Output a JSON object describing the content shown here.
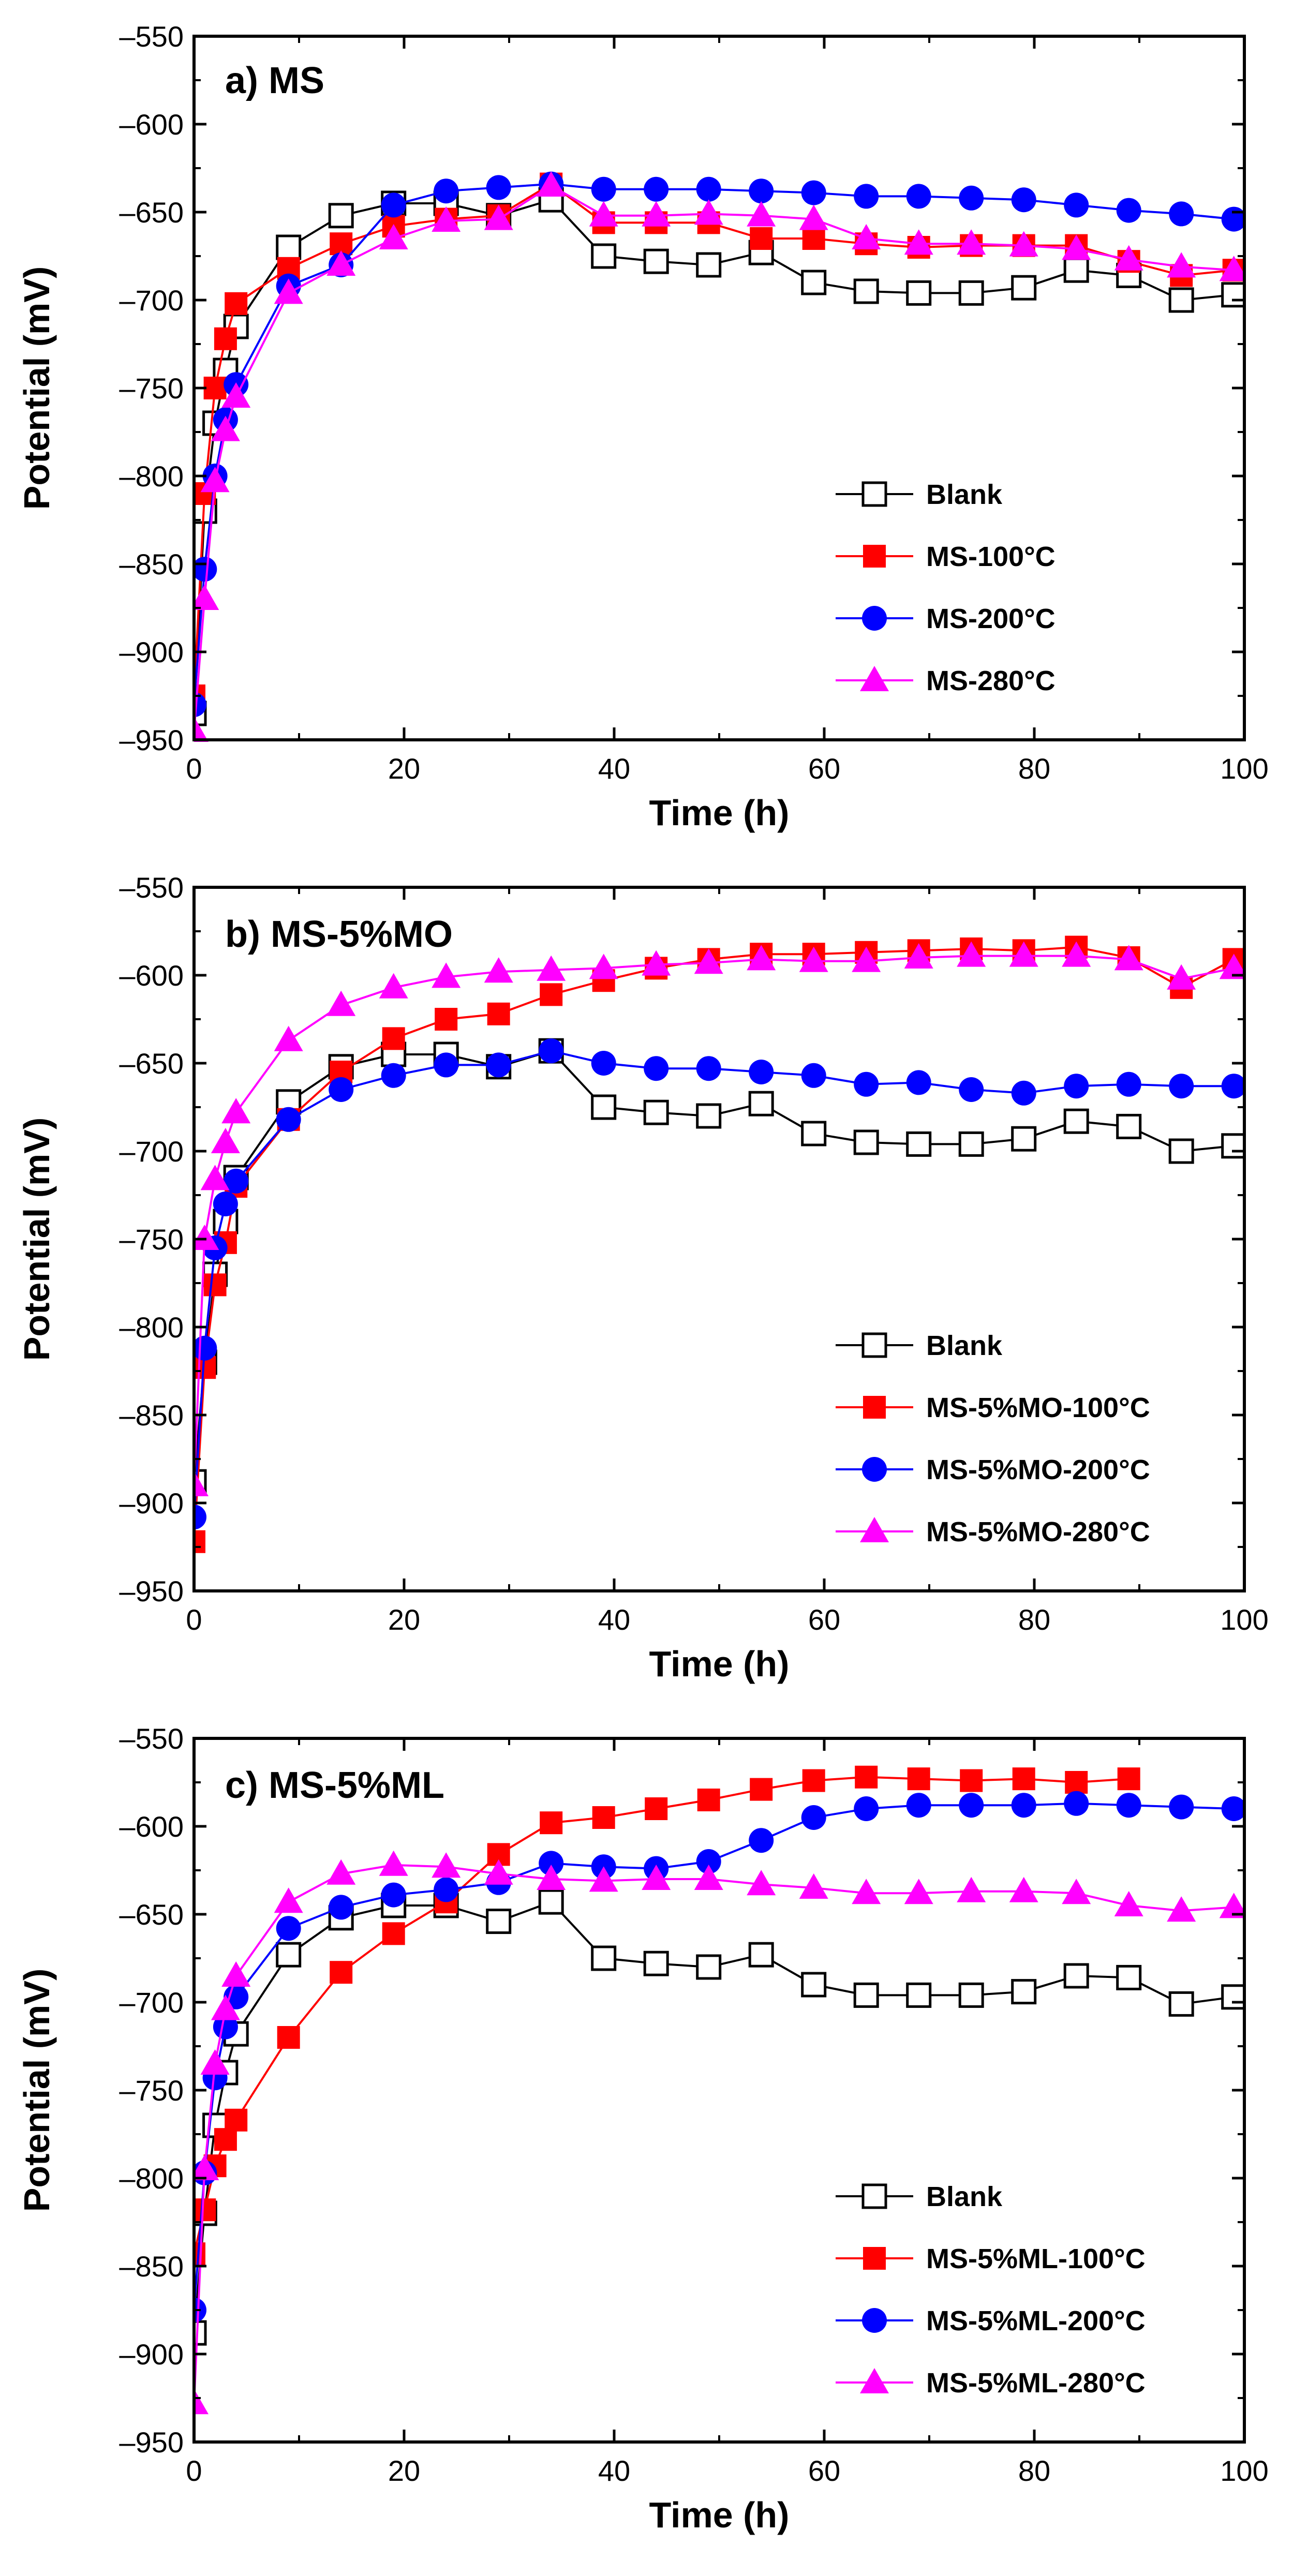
{
  "figure": {
    "colors": {
      "blank": "#000000",
      "c100": "#ff0000",
      "c200": "#0000ff",
      "c280": "#ff00ff"
    }
  },
  "chart_data": [
    {
      "type": "line",
      "title": "a) MS",
      "xlabel": "Time (h)",
      "ylabel": "Potential (mV)",
      "xlim": [
        0,
        100
      ],
      "ylim": [
        -950,
        -550
      ],
      "xticks": [
        0,
        20,
        40,
        60,
        80,
        100
      ],
      "yticks": [
        -550,
        -600,
        -650,
        -700,
        -750,
        -800,
        -850,
        -900,
        -950
      ],
      "legend_position": "bottom-right",
      "series": [
        {
          "name": "Blank",
          "marker": "square-open",
          "color": "#000000",
          "x": [
            0,
            1,
            2,
            3,
            4,
            9,
            14,
            19,
            24,
            29,
            34,
            39,
            44,
            49,
            54,
            59,
            64,
            69,
            74,
            79,
            84,
            89,
            94,
            99
          ],
          "y": [
            -935,
            -820,
            -770,
            -740,
            -715,
            -670,
            -652,
            -645,
            -645,
            -652,
            -643,
            -675,
            -678,
            -680,
            -673,
            -690,
            -695,
            -696,
            -696,
            -693,
            -683,
            -686,
            -700,
            -697
          ]
        },
        {
          "name": "MS-100°C",
          "marker": "square",
          "color": "#ff0000",
          "x": [
            0,
            1,
            2,
            3,
            4,
            9,
            14,
            19,
            24,
            29,
            34,
            39,
            44,
            49,
            54,
            59,
            64,
            69,
            74,
            79,
            84,
            89,
            94,
            99
          ],
          "y": [
            -925,
            -810,
            -750,
            -722,
            -702,
            -682,
            -668,
            -658,
            -654,
            -652,
            -634,
            -656,
            -656,
            -656,
            -665,
            -665,
            -668,
            -670,
            -669,
            -669,
            -669,
            -678,
            -686,
            -683
          ]
        },
        {
          "name": "MS-200°C",
          "marker": "circle",
          "color": "#0000ff",
          "x": [
            0,
            1,
            2,
            3,
            4,
            9,
            14,
            19,
            24,
            29,
            34,
            39,
            44,
            49,
            54,
            59,
            64,
            69,
            74,
            79,
            84,
            89,
            94,
            99
          ],
          "y": [
            -930,
            -853,
            -800,
            -768,
            -748,
            -692,
            -680,
            -646,
            -638,
            -636,
            -634,
            -637,
            -637,
            -637,
            -638,
            -639,
            -641,
            -641,
            -642,
            -643,
            -646,
            -649,
            -651,
            -654
          ]
        },
        {
          "name": "MS-280°C",
          "marker": "triangle",
          "color": "#ff00ff",
          "x": [
            0,
            1,
            2,
            3,
            4,
            9,
            14,
            19,
            24,
            29,
            34,
            39,
            44,
            49,
            54,
            59,
            64,
            69,
            74,
            79,
            84,
            89,
            94,
            99
          ],
          "y": [
            -945,
            -870,
            -803,
            -774,
            -755,
            -696,
            -680,
            -665,
            -655,
            -654,
            -635,
            -652,
            -652,
            -651,
            -652,
            -654,
            -665,
            -668,
            -668,
            -669,
            -671,
            -677,
            -681,
            -683
          ]
        }
      ]
    },
    {
      "type": "line",
      "title": "b) MS-5%MO",
      "xlabel": "Time (h)",
      "ylabel": "Potential (mV)",
      "xlim": [
        0,
        100
      ],
      "ylim": [
        -950,
        -550
      ],
      "xticks": [
        0,
        20,
        40,
        60,
        80,
        100
      ],
      "yticks": [
        -550,
        -600,
        -650,
        -700,
        -750,
        -800,
        -850,
        -900,
        -950
      ],
      "legend_position": "bottom-right",
      "series": [
        {
          "name": "Blank",
          "marker": "square-open",
          "color": "#000000",
          "x": [
            0,
            1,
            2,
            3,
            4,
            9,
            14,
            19,
            24,
            29,
            34,
            39,
            44,
            49,
            54,
            59,
            64,
            69,
            74,
            79,
            84,
            89,
            94,
            99
          ],
          "y": [
            -888,
            -820,
            -770,
            -740,
            -715,
            -672,
            -652,
            -645,
            -645,
            -652,
            -643,
            -675,
            -678,
            -680,
            -673,
            -690,
            -695,
            -696,
            -696,
            -693,
            -683,
            -686,
            -700,
            -697
          ]
        },
        {
          "name": "MS-5%MO-100°C",
          "marker": "square",
          "color": "#ff0000",
          "x": [
            0,
            1,
            2,
            3,
            4,
            9,
            14,
            19,
            24,
            29,
            34,
            39,
            44,
            49,
            54,
            59,
            64,
            69,
            74,
            79,
            84,
            89,
            94,
            99
          ],
          "y": [
            -922,
            -823,
            -776,
            -752,
            -720,
            -682,
            -655,
            -636,
            -625,
            -622,
            -611,
            -603,
            -596,
            -591,
            -588,
            -588,
            -587,
            -586,
            -585,
            -586,
            -584,
            -590,
            -607,
            -591
          ]
        },
        {
          "name": "MS-5%MO-200°C",
          "marker": "circle",
          "color": "#0000ff",
          "x": [
            0,
            1,
            2,
            3,
            4,
            9,
            14,
            19,
            24,
            29,
            34,
            39,
            44,
            49,
            54,
            59,
            64,
            69,
            74,
            79,
            84,
            89,
            94,
            99
          ],
          "y": [
            -908,
            -812,
            -755,
            -730,
            -717,
            -682,
            -665,
            -657,
            -651,
            -651,
            -643,
            -650,
            -653,
            -653,
            -655,
            -657,
            -662,
            -661,
            -665,
            -667,
            -663,
            -662,
            -663,
            -663
          ]
        },
        {
          "name": "MS-5%MO-280°C",
          "marker": "triangle",
          "color": "#ff00ff",
          "x": [
            0,
            1,
            2,
            3,
            4,
            9,
            14,
            19,
            24,
            29,
            34,
            39,
            44,
            49,
            54,
            59,
            64,
            69,
            74,
            79,
            84,
            89,
            94,
            99
          ],
          "y": [
            -890,
            -750,
            -716,
            -695,
            -678,
            -637,
            -617,
            -607,
            -601,
            -598,
            -597,
            -596,
            -594,
            -593,
            -591,
            -592,
            -592,
            -590,
            -589,
            -589,
            -589,
            -591,
            -602,
            -596
          ]
        }
      ]
    },
    {
      "type": "line",
      "title": "c) MS-5%ML",
      "xlabel": "Time (h)",
      "ylabel": "Potential (mV)",
      "xlim": [
        0,
        100
      ],
      "ylim": [
        -950,
        -550
      ],
      "xticks": [
        0,
        20,
        40,
        60,
        80,
        100
      ],
      "yticks": [
        -550,
        -600,
        -650,
        -700,
        -750,
        -800,
        -850,
        -900,
        -950
      ],
      "legend_position": "bottom-right",
      "series": [
        {
          "name": "Blank",
          "marker": "square-open",
          "color": "#000000",
          "x": [
            0,
            1,
            2,
            3,
            4,
            9,
            14,
            19,
            24,
            29,
            34,
            39,
            44,
            49,
            54,
            59,
            64,
            69,
            74,
            79,
            84,
            89,
            94,
            99
          ],
          "y": [
            -888,
            -820,
            -770,
            -740,
            -718,
            -673,
            -652,
            -645,
            -645,
            -654,
            -643,
            -675,
            -678,
            -680,
            -673,
            -690,
            -696,
            -696,
            -696,
            -694,
            -685,
            -686,
            -701,
            -697
          ]
        },
        {
          "name": "MS-5%ML-100°C",
          "marker": "square",
          "color": "#ff0000",
          "x": [
            0,
            1,
            2,
            3,
            4,
            9,
            14,
            19,
            24,
            29,
            34,
            39,
            44,
            49,
            54,
            59,
            64,
            69,
            74,
            79,
            84,
            89
          ],
          "y": [
            -843,
            -818,
            -793,
            -778,
            -767,
            -720,
            -683,
            -661,
            -643,
            -616,
            -598,
            -595,
            -590,
            -585,
            -579,
            -574,
            -572,
            -573,
            -574,
            -573,
            -575,
            -573
          ]
        },
        {
          "name": "MS-5%ML-200°C",
          "marker": "circle",
          "color": "#0000ff",
          "x": [
            0,
            1,
            2,
            3,
            4,
            9,
            14,
            19,
            24,
            29,
            34,
            39,
            44,
            49,
            54,
            59,
            64,
            69,
            74,
            79,
            84,
            89,
            94,
            99
          ],
          "y": [
            -875,
            -797,
            -743,
            -714,
            -697,
            -658,
            -646,
            -639,
            -636,
            -632,
            -621,
            -623,
            -624,
            -620,
            -608,
            -595,
            -590,
            -588,
            -588,
            -588,
            -587,
            -588,
            -589,
            -590
          ]
        },
        {
          "name": "MS-5%ML-280°C",
          "marker": "triangle",
          "color": "#ff00ff",
          "x": [
            0,
            1,
            2,
            3,
            4,
            9,
            14,
            19,
            24,
            29,
            34,
            39,
            44,
            49,
            54,
            59,
            64,
            69,
            74,
            79,
            84,
            89,
            94,
            99
          ],
          "y": [
            -928,
            -795,
            -735,
            -704,
            -685,
            -643,
            -627,
            -622,
            -623,
            -627,
            -630,
            -631,
            -630,
            -630,
            -633,
            -635,
            -638,
            -638,
            -637,
            -637,
            -638,
            -645,
            -648,
            -646
          ]
        }
      ]
    }
  ]
}
